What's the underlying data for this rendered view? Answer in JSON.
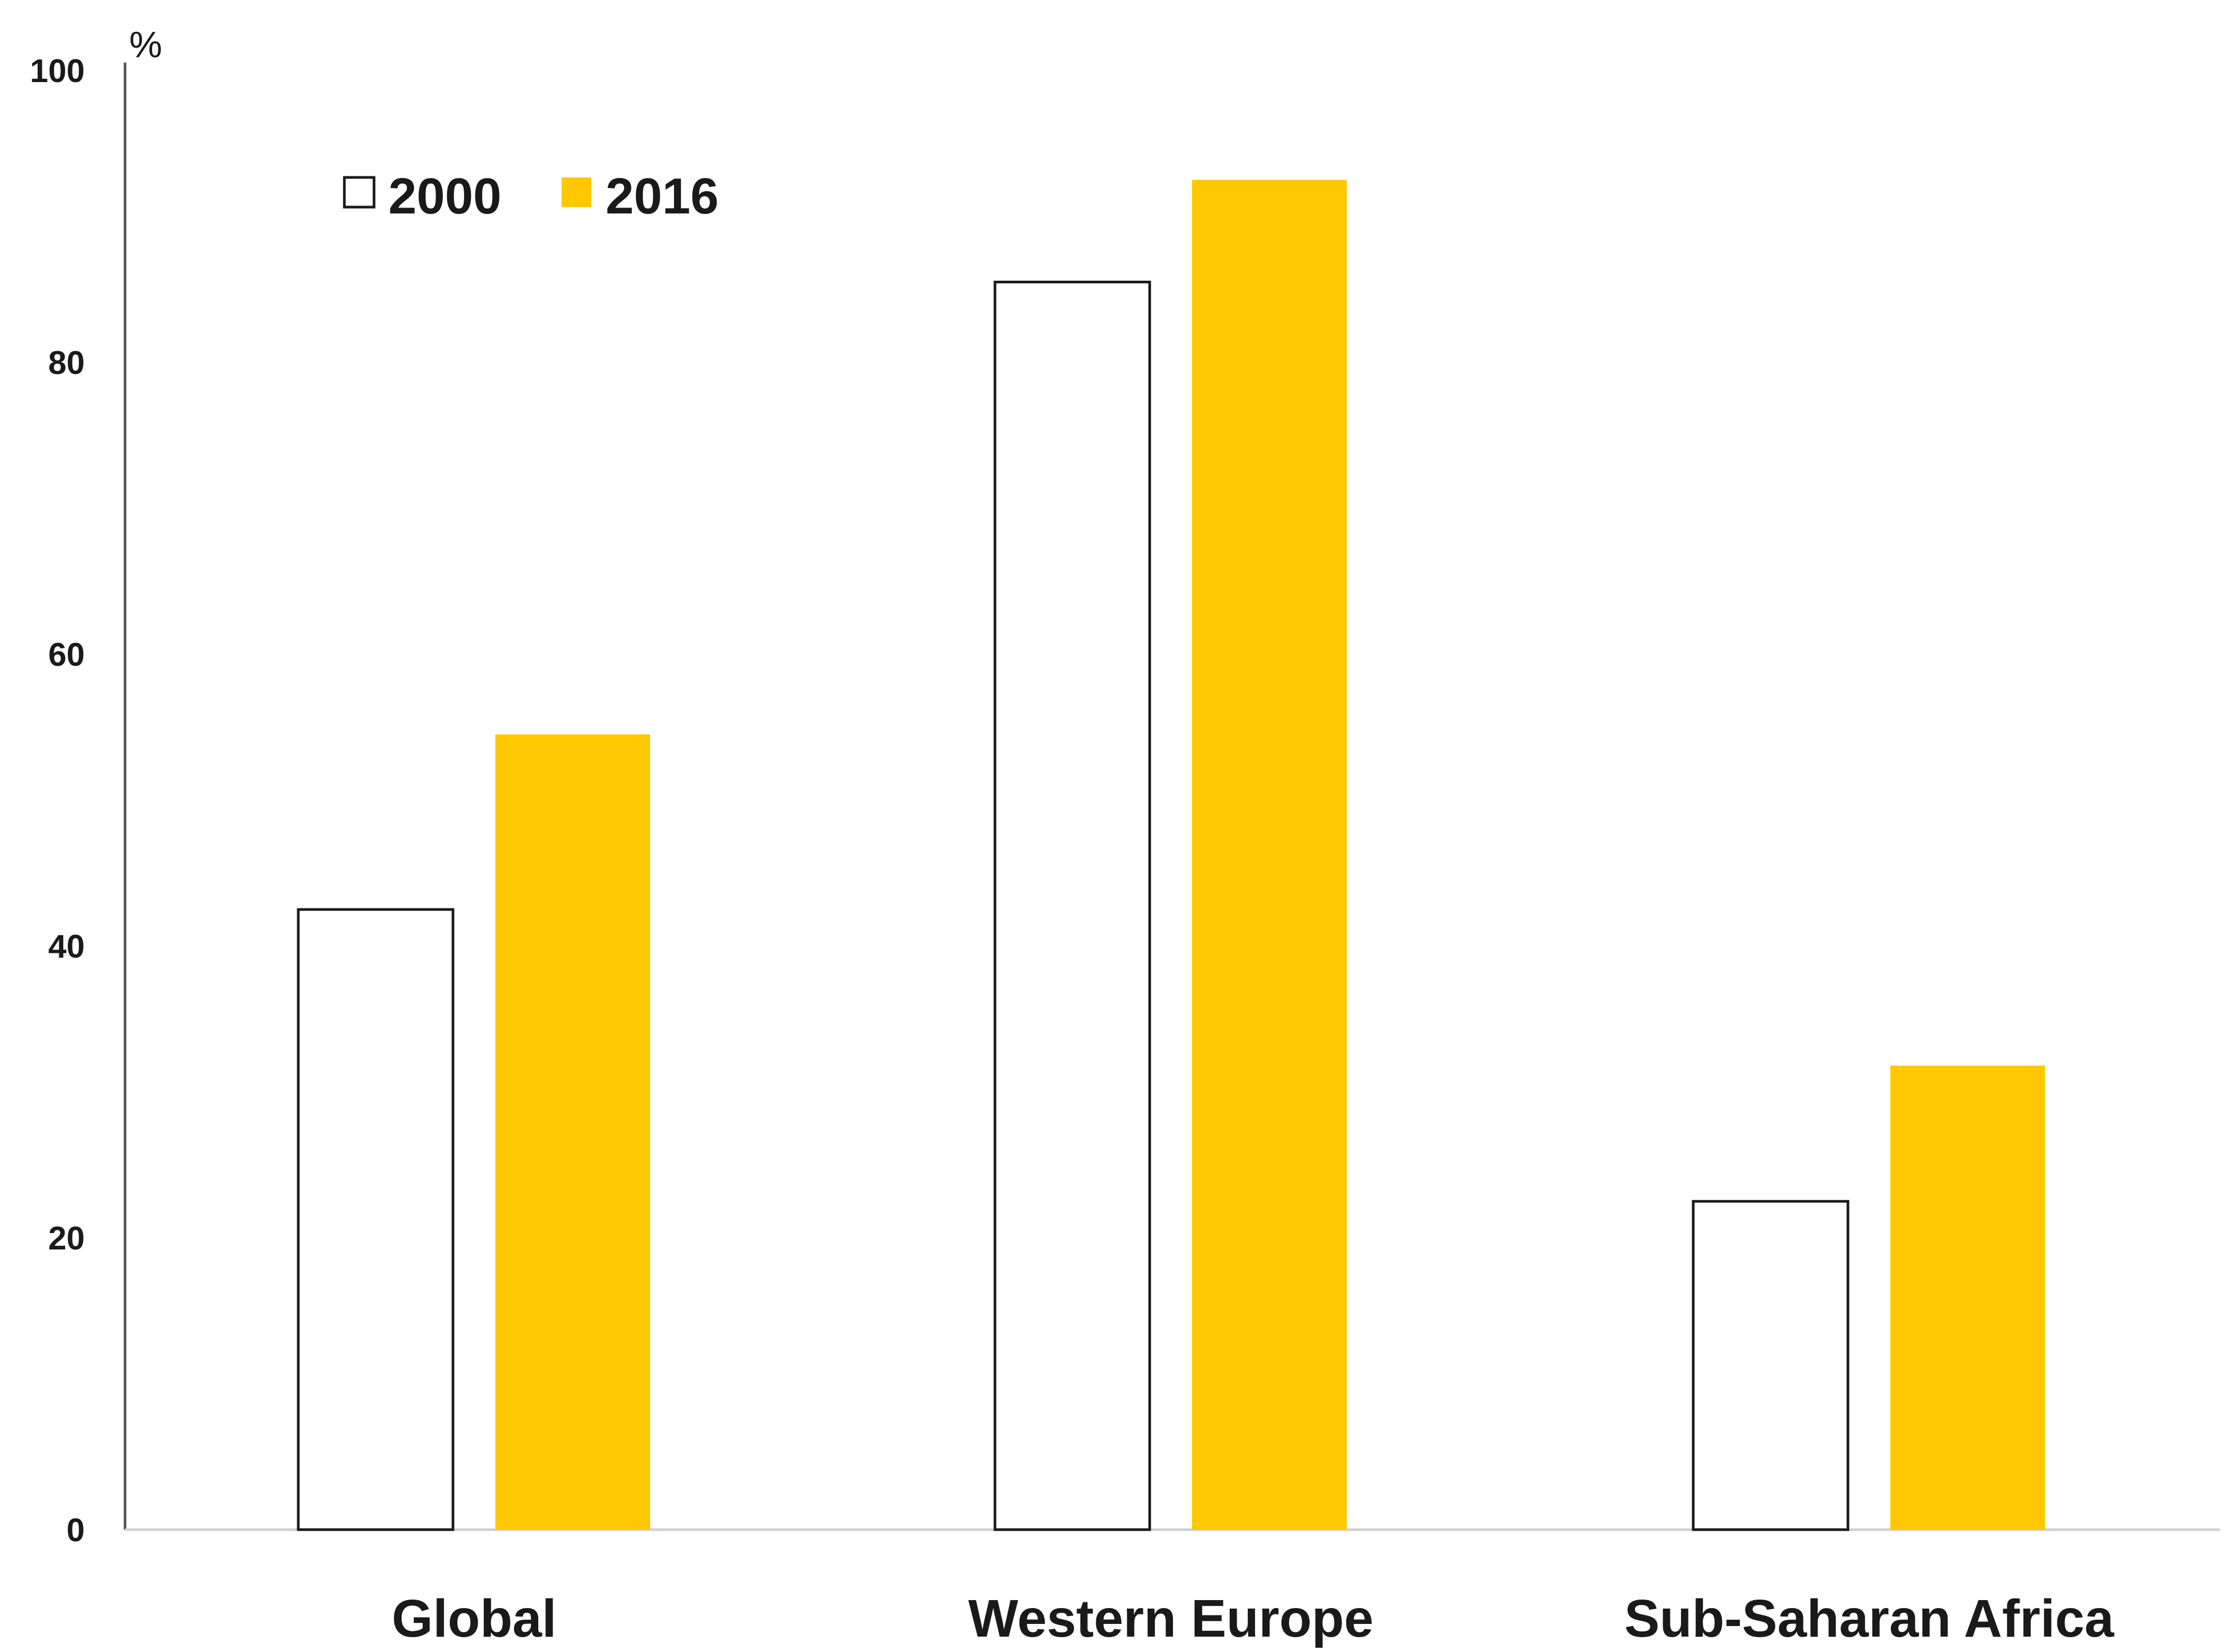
{
  "chart_data": {
    "type": "bar",
    "categories": [
      "Global",
      "Western Europe",
      "Sub-Saharan Africa"
    ],
    "series": [
      {
        "name": "2000",
        "values": [
          42.5,
          85.5,
          22.5
        ],
        "fill": "#ffffff",
        "stroke": "#1a1a1a"
      },
      {
        "name": "2016",
        "values": [
          54.5,
          92.5,
          31.8
        ],
        "fill": "#FFC800",
        "stroke": "none"
      }
    ],
    "y_unit": "%",
    "ylim": [
      0,
      100
    ],
    "yticks": [
      "0",
      "20",
      "40",
      "60",
      "80",
      "100"
    ],
    "grid": false,
    "legend_position": "top-left"
  }
}
